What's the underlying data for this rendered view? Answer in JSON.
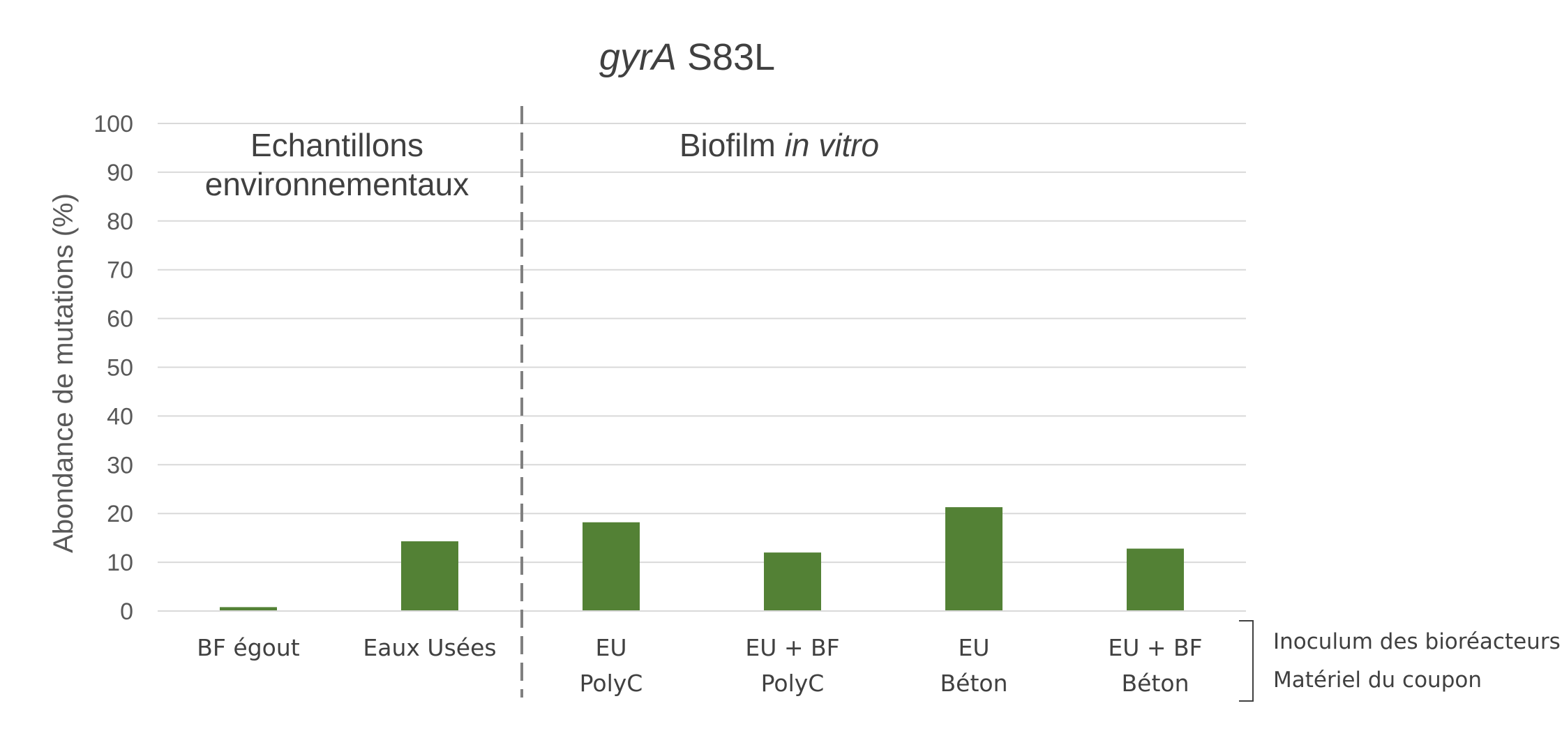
{
  "chart_data": {
    "type": "bar",
    "title_italic": "gyrA",
    "title_rest": " S83L",
    "ylabel": "Abondance de mutations (%)",
    "ylim": [
      0,
      100
    ],
    "yticks": [
      0,
      10,
      20,
      30,
      40,
      50,
      60,
      70,
      80,
      90,
      100
    ],
    "grid": true,
    "categories": [
      [
        "BF égout"
      ],
      [
        "Eaux Usées"
      ],
      [
        "EU",
        "PolyC"
      ],
      [
        "EU + BF",
        "PolyC"
      ],
      [
        "EU",
        "Béton"
      ],
      [
        "EU + BF",
        "Béton"
      ]
    ],
    "values": [
      0.8,
      14.3,
      18.2,
      12.0,
      21.3,
      12.8
    ],
    "bar_color": "#538135",
    "groups": {
      "left_line1": "Echantillons",
      "left_line2": "environnementaux",
      "right_normal": "Biofilm ",
      "right_italic": "in vitro"
    },
    "row_labels": [
      "Inoculum des bioréacteurs",
      "Matériel du coupon"
    ]
  }
}
